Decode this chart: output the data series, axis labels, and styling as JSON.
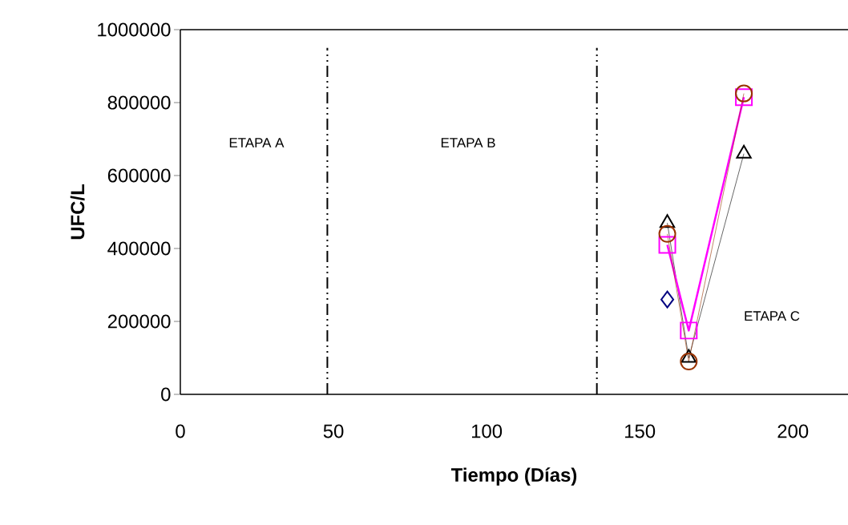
{
  "chart_data": {
    "type": "line",
    "xlabel": "Tiempo (Días)",
    "ylabel": "UFC/L",
    "x": [
      159,
      166,
      184
    ],
    "series": [
      {
        "color": "#000080",
        "marker": "diamond",
        "values": [
          260000,
          null,
          null
        ]
      },
      {
        "color": "#000000",
        "marker": "triangle",
        "values": [
          470000,
          100000,
          660000
        ]
      },
      {
        "color": "#ff00ff",
        "marker": "square",
        "values": [
          410000,
          175000,
          815000
        ]
      },
      {
        "color": "#993300",
        "marker": "circle",
        "values": [
          440000,
          90000,
          825000
        ]
      }
    ],
    "xlim": [
      0,
      218
    ],
    "ylim": [
      0,
      1000000
    ],
    "xticks": [
      0,
      50,
      100,
      150,
      200
    ],
    "yticks": [
      0,
      200000,
      400000,
      600000,
      800000,
      1000000
    ],
    "ref_lines": [
      {
        "axis": "x",
        "value": 48,
        "color": "#000000",
        "line_style": "dashdot"
      },
      {
        "axis": "x",
        "value": 136,
        "color": "#000000",
        "line_style": "dashdot"
      }
    ],
    "annotations": [
      "ETAPA  A",
      "ETAPA  B",
      "ETAPA C"
    ],
    "line_style": "solid"
  }
}
